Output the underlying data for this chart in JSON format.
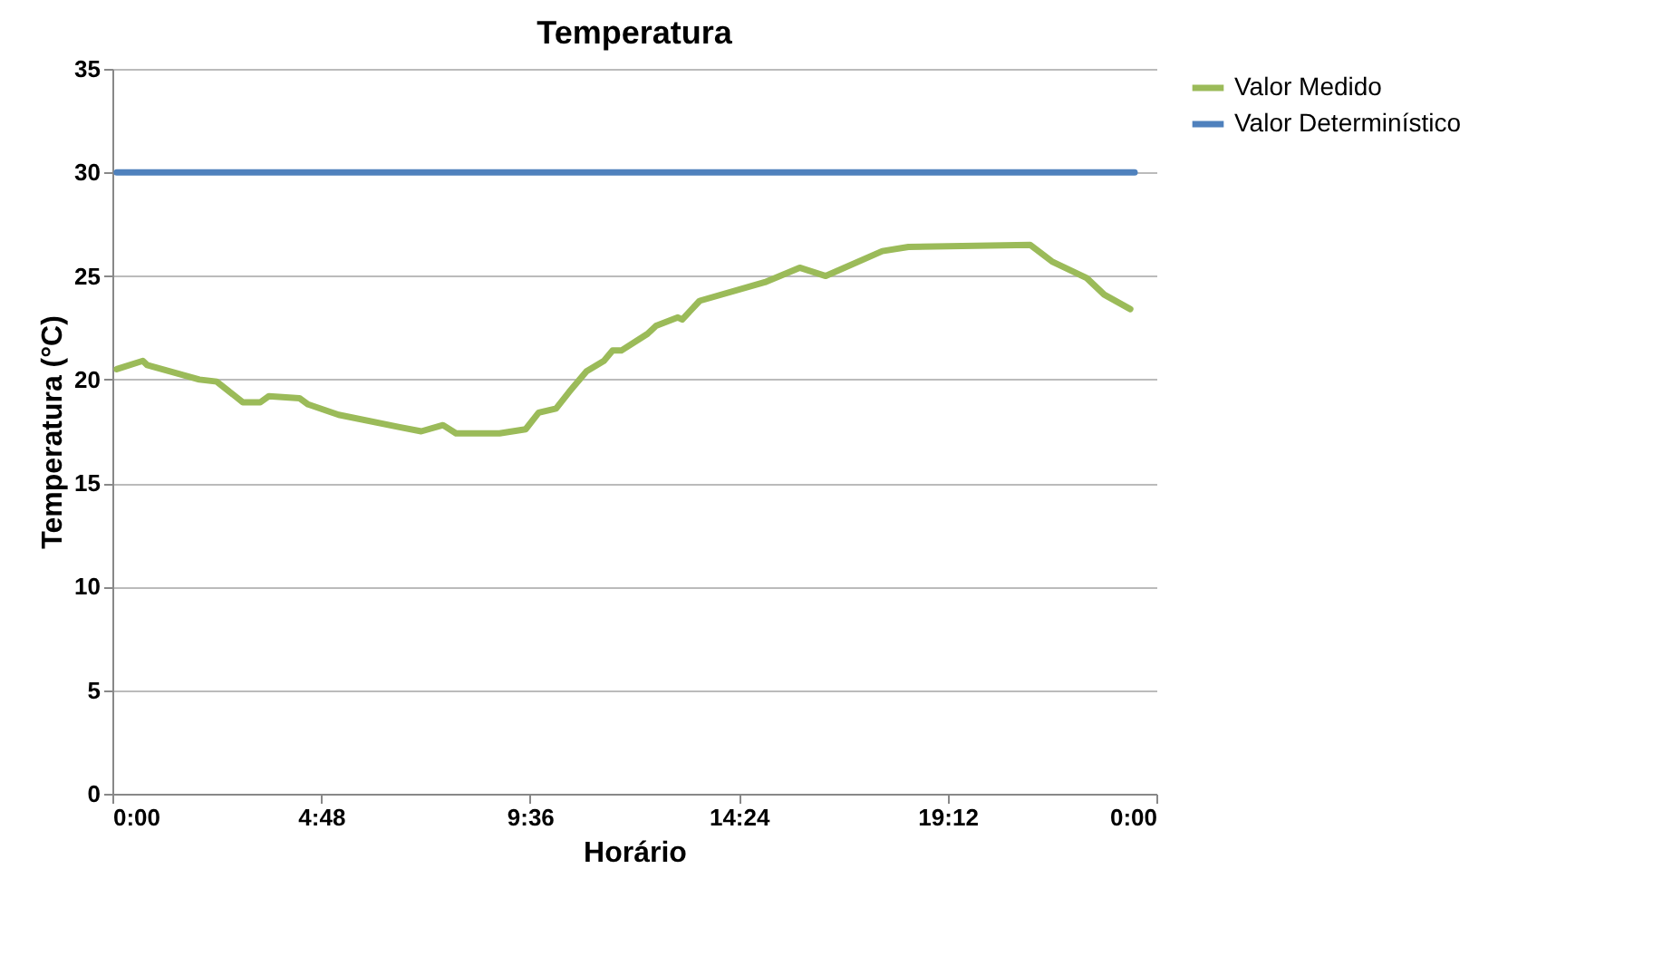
{
  "chart_data": {
    "type": "line",
    "title": "Temperatura",
    "xlabel": "Horário",
    "ylabel": "Temperatura (°C)",
    "xlim": [
      0,
      24
    ],
    "xticks": [
      {
        "value": 0,
        "label": "0:00"
      },
      {
        "value": 4.8,
        "label": "4:48"
      },
      {
        "value": 9.6,
        "label": "9:36"
      },
      {
        "value": 14.4,
        "label": "14:24"
      },
      {
        "value": 19.2,
        "label": "19:12"
      },
      {
        "value": 24,
        "label": "0:00"
      }
    ],
    "ylim": [
      0,
      35
    ],
    "yticks": [
      0,
      5,
      10,
      15,
      20,
      25,
      30,
      35
    ],
    "grid": "y",
    "legend": "right",
    "line_style": "solid",
    "marker": "none",
    "series": [
      {
        "name": "Valor Medido",
        "color": "#9bbb59",
        "x": [
          0.1,
          0.7,
          0.8,
          2.0,
          2.4,
          3.0,
          3.4,
          3.6,
          4.3,
          4.5,
          5.2,
          6.6,
          7.1,
          7.6,
          7.9,
          8.9,
          9.5,
          9.8,
          10.2,
          10.5,
          10.9,
          11.3,
          11.5,
          11.7,
          12.3,
          12.5,
          13.0,
          13.1,
          13.5,
          15.0,
          15.8,
          16.4,
          17.7,
          18.3,
          21.1,
          21.6,
          22.4,
          22.8,
          23.4
        ],
        "values": [
          20.5,
          20.9,
          20.7,
          20.0,
          19.9,
          18.9,
          18.9,
          19.2,
          19.1,
          18.8,
          18.3,
          17.7,
          17.5,
          17.8,
          17.4,
          17.4,
          17.6,
          18.4,
          18.6,
          19.4,
          20.4,
          20.9,
          21.4,
          21.4,
          22.2,
          22.6,
          23.0,
          22.9,
          23.8,
          24.7,
          25.4,
          25.0,
          26.2,
          26.4,
          26.5,
          25.7,
          24.9,
          24.1,
          23.4
        ]
      },
      {
        "name": "Valor Determinístico",
        "color": "#4f81bd",
        "x": [
          0.1,
          23.5
        ],
        "values": [
          30,
          30
        ]
      }
    ]
  }
}
